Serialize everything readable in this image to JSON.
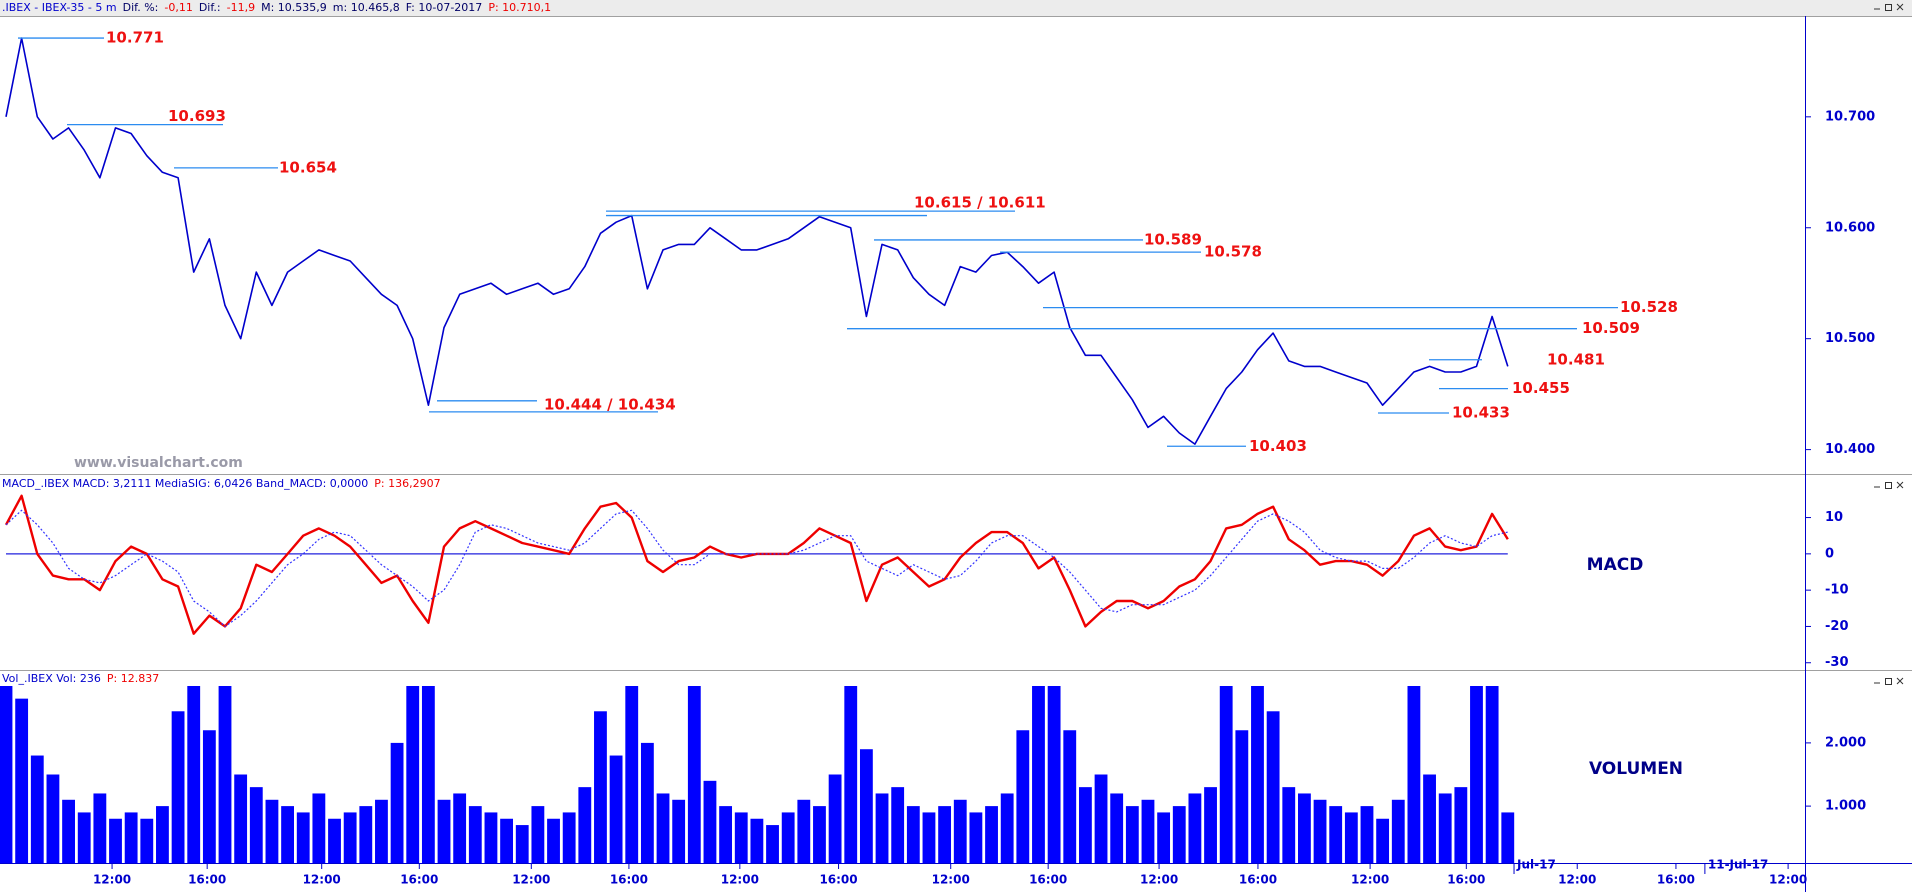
{
  "chart_data": [
    {
      "type": "line",
      "header": [
        {
          "text": ".IBEX - IBEX-35 -  5 m",
          "color": "#0000cc"
        },
        {
          "text": "Dif. %:",
          "color": "#000066"
        },
        {
          "text": "-0,11",
          "color": "#ee0000"
        },
        {
          "text": "Dif.:",
          "color": "#000066"
        },
        {
          "text": "-11,9",
          "color": "#ee0000"
        },
        {
          "text": "M: 10.535,9",
          "color": "#000066"
        },
        {
          "text": "m: 10.465,8",
          "color": "#000066"
        },
        {
          "text": "F: 10-07-2017",
          "color": "#000066"
        },
        {
          "text": "P: 10.710,1",
          "color": "#ee0000"
        }
      ],
      "watermark": "www.visualchart.com",
      "xlim": [
        0,
        115
      ],
      "ylim": [
        10.378,
        10.79
      ],
      "yticks": [
        {
          "value": 10.4,
          "label": "10.400"
        },
        {
          "value": 10.5,
          "label": "10.500"
        },
        {
          "value": 10.6,
          "label": "10.600"
        },
        {
          "value": 10.7,
          "label": "10.700"
        }
      ],
      "series": [
        {
          "color": "#0000cc",
          "values": [
            10.7,
            10.771,
            10.7,
            10.68,
            10.69,
            10.67,
            10.645,
            10.69,
            10.685,
            10.665,
            10.65,
            10.645,
            10.56,
            10.59,
            10.53,
            10.5,
            10.56,
            10.53,
            10.56,
            10.57,
            10.58,
            10.575,
            10.57,
            10.555,
            10.54,
            10.53,
            10.5,
            10.44,
            10.51,
            10.54,
            10.545,
            10.55,
            10.54,
            10.545,
            10.55,
            10.54,
            10.545,
            10.565,
            10.595,
            10.605,
            10.611,
            10.545,
            10.58,
            10.585,
            10.585,
            10.6,
            10.59,
            10.58,
            10.58,
            10.585,
            10.59,
            10.6,
            10.61,
            10.605,
            10.6,
            10.52,
            10.585,
            10.58,
            10.555,
            10.54,
            10.53,
            10.565,
            10.56,
            10.575,
            10.578,
            10.565,
            10.55,
            10.56,
            10.51,
            10.485,
            10.485,
            10.465,
            10.445,
            10.42,
            10.43,
            10.415,
            10.405,
            10.43,
            10.455,
            10.47,
            10.49,
            10.505,
            10.48,
            10.475,
            10.475,
            10.47,
            10.465,
            10.46,
            10.44,
            10.455,
            10.47,
            10.475,
            10.47,
            10.47,
            10.475,
            10.52,
            10.475
          ]
        }
      ],
      "level_color": "#2b8cf0",
      "level_label_color": "#ee1111",
      "levels": [
        {
          "values": [
            10.771
          ],
          "label": "10.771"
        },
        {
          "values": [
            10.693
          ],
          "label": "10.693"
        },
        {
          "values": [
            10.654
          ],
          "label": "10.654"
        },
        {
          "values": [
            10.615,
            10.611
          ],
          "label": "10.615 / 10.611"
        },
        {
          "values": [
            10.589
          ],
          "label": "10.589"
        },
        {
          "values": [
            10.578
          ],
          "label": "10.578"
        },
        {
          "values": [
            10.528
          ],
          "label": "10.528"
        },
        {
          "values": [
            10.509
          ],
          "label": "10.509"
        },
        {
          "values": [
            10.481
          ],
          "label": "10.481"
        },
        {
          "values": [
            10.455
          ],
          "label": "10.455"
        },
        {
          "values": [
            10.444,
            10.434
          ],
          "label": "10.444 / 10.434"
        },
        {
          "values": [
            10.433
          ],
          "label": "10.433"
        },
        {
          "values": [
            10.403
          ],
          "label": "10.403"
        }
      ]
    },
    {
      "type": "line",
      "header": [
        {
          "text": "MACD_.IBEX MACD: 3,2111 MediaSIG: 6,0426 Band_MACD: 0,0000",
          "color": "#0000cc"
        },
        {
          "text": "P: 136,2907",
          "color": "#ee0000"
        }
      ],
      "label": "MACD",
      "xlim": [
        0,
        115
      ],
      "ylim": [
        -32,
        22
      ],
      "yticks": [
        -30,
        -20,
        -10,
        0,
        10
      ],
      "band": 0,
      "band_color": "#2222dd",
      "series": [
        {
          "color": "#ee0000",
          "style": "solid",
          "values": [
            8,
            16,
            0,
            -6,
            -7,
            -7,
            -10,
            -2,
            2,
            0,
            -7,
            -9,
            -22,
            -17,
            -20,
            -15,
            -3,
            -5,
            0,
            5,
            7,
            5,
            2,
            -3,
            -8,
            -6,
            -13,
            -19,
            2,
            7,
            9,
            7,
            5,
            3,
            2,
            1,
            0,
            7,
            13,
            14,
            10,
            -2,
            -5,
            -2,
            -1,
            2,
            0,
            -1,
            0,
            0,
            0,
            3,
            7,
            5,
            3,
            -13,
            -3,
            -1,
            -5,
            -9,
            -7,
            -1,
            3,
            6,
            6,
            3,
            -4,
            -1,
            -10,
            -20,
            -16,
            -13,
            -13,
            -15,
            -13,
            -9,
            -7,
            -2,
            7,
            8,
            11,
            13,
            4,
            1,
            -3,
            -2,
            -2,
            -3,
            -6,
            -2,
            5,
            7,
            2,
            1,
            2,
            11,
            4
          ]
        },
        {
          "color": "#3333ff",
          "style": "dotted",
          "values": [
            8,
            12,
            8,
            3,
            -4,
            -7,
            -8,
            -6,
            -3,
            0,
            -2,
            -5,
            -13,
            -16,
            -20,
            -17,
            -13,
            -8,
            -3,
            0,
            4,
            6,
            5,
            1,
            -3,
            -6,
            -9,
            -13,
            -10,
            -3,
            6,
            8,
            7,
            5,
            3,
            2,
            1,
            3,
            7,
            11,
            12,
            7,
            1,
            -3,
            -3,
            0,
            0,
            0,
            0,
            0,
            0,
            1,
            3,
            5,
            5,
            -2,
            -4,
            -6,
            -3,
            -5,
            -7,
            -6,
            -2,
            3,
            5,
            5,
            2,
            -1,
            -5,
            -10,
            -15,
            -16,
            -14,
            -14,
            -14,
            -12,
            -10,
            -6,
            -1,
            4,
            9,
            11,
            9,
            6,
            1,
            -1,
            -2,
            -2,
            -4,
            -4,
            -1,
            3,
            5,
            3,
            2,
            5,
            6
          ]
        }
      ]
    },
    {
      "type": "bar",
      "header": [
        {
          "text": "Vol_.IBEX Vol: 236",
          "color": "#0000cc"
        },
        {
          "text": "P: 12.837",
          "color": "#ee0000"
        }
      ],
      "label": "VOLUMEN",
      "xlim": [
        0,
        115
      ],
      "ylim": [
        100,
        2900
      ],
      "yticks": [
        {
          "value": 1000,
          "label": "1.000"
        },
        {
          "value": 2000,
          "label": "2.000"
        }
      ],
      "color": "#0000ff",
      "values": [
        2900,
        2700,
        1800,
        1500,
        1100,
        900,
        1200,
        800,
        900,
        800,
        1000,
        2500,
        3000,
        2200,
        2900,
        1500,
        1300,
        1100,
        1000,
        900,
        1200,
        800,
        900,
        1000,
        1100,
        2000,
        2900,
        2900,
        1100,
        1200,
        1000,
        900,
        800,
        700,
        1000,
        800,
        900,
        1300,
        2500,
        1800,
        2900,
        2000,
        1200,
        1100,
        2900,
        1400,
        1000,
        900,
        800,
        700,
        900,
        1100,
        1000,
        1500,
        2900,
        1900,
        1200,
        1300,
        1000,
        900,
        1000,
        1100,
        900,
        1000,
        1200,
        2200,
        2900,
        2900,
        2200,
        1300,
        1500,
        1200,
        1000,
        1100,
        900,
        1000,
        1200,
        1300,
        2900,
        2200,
        2900,
        2500,
        1300,
        1200,
        1100,
        1000,
        900,
        1000,
        800,
        1100,
        2900,
        1500,
        1200,
        1300,
        2900,
        2900,
        900
      ],
      "xticks": [
        {
          "value": 6.78,
          "label": "12:00"
        },
        {
          "value": 12.86,
          "label": "16:00"
        },
        {
          "value": 20.18,
          "label": "12:00"
        },
        {
          "value": 26.42,
          "label": "16:00"
        },
        {
          "value": 33.58,
          "label": "12:00"
        },
        {
          "value": 39.82,
          "label": "16:00"
        },
        {
          "value": 46.91,
          "label": "12:00"
        },
        {
          "value": 53.22,
          "label": "16:00"
        },
        {
          "value": 60.39,
          "label": "12:00"
        },
        {
          "value": 66.62,
          "label": "16:00"
        },
        {
          "value": 73.71,
          "label": "12:00"
        },
        {
          "value": 80.03,
          "label": "16:00"
        },
        {
          "value": 87.2,
          "label": "12:00"
        },
        {
          "value": 93.35,
          "label": "16:00"
        },
        {
          "value": 100.44,
          "label": "12:00"
        },
        {
          "value": 106.75,
          "label": "16:00"
        },
        {
          "value": 113.92,
          "label": "12:00"
        }
      ],
      "date_ticks": [
        {
          "value": 96.4,
          "label": "Jul-17"
        },
        {
          "value": 108.6,
          "label": "11-Jul-17"
        }
      ]
    }
  ]
}
